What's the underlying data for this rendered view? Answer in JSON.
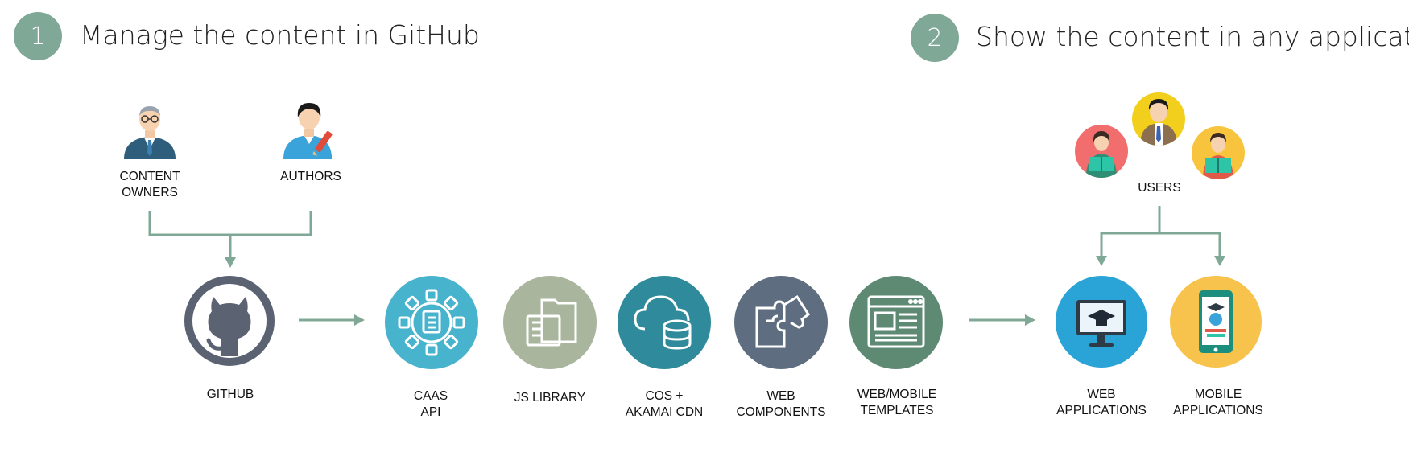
{
  "steps": [
    {
      "number": "1",
      "title": "Manage the content in GitHub"
    },
    {
      "number": "2",
      "title": "Show the content in any application"
    }
  ],
  "actors": {
    "content_owners": [
      "CONTENT",
      "OWNERS"
    ],
    "authors": "AUTHORS",
    "users": "USERS"
  },
  "nodes": {
    "github": "GITHUB",
    "caas": [
      "CAAS",
      "API"
    ],
    "js_library": "JS LIBRARY",
    "cos": [
      "COS +",
      "AKAMAI CDN"
    ],
    "web_components": [
      "WEB",
      "COMPONENTS"
    ],
    "templates": [
      "WEB/MOBILE",
      "TEMPLATES"
    ],
    "web_apps": [
      "WEB",
      "APPLICATIONS"
    ],
    "mobile_apps": [
      "MOBILE",
      "APPLICATIONS"
    ]
  },
  "colors": {
    "step_badge": "#7fa996",
    "connector": "#7fa996",
    "github": "#5b6272",
    "caas": "#47b3cc",
    "js_library": "#a9b59d",
    "cos": "#2f8a9c",
    "web_components": "#5e6e80",
    "templates": "#5e8a74",
    "web_apps": "#2aa3d6",
    "mobile_apps": "#f7c34c"
  }
}
